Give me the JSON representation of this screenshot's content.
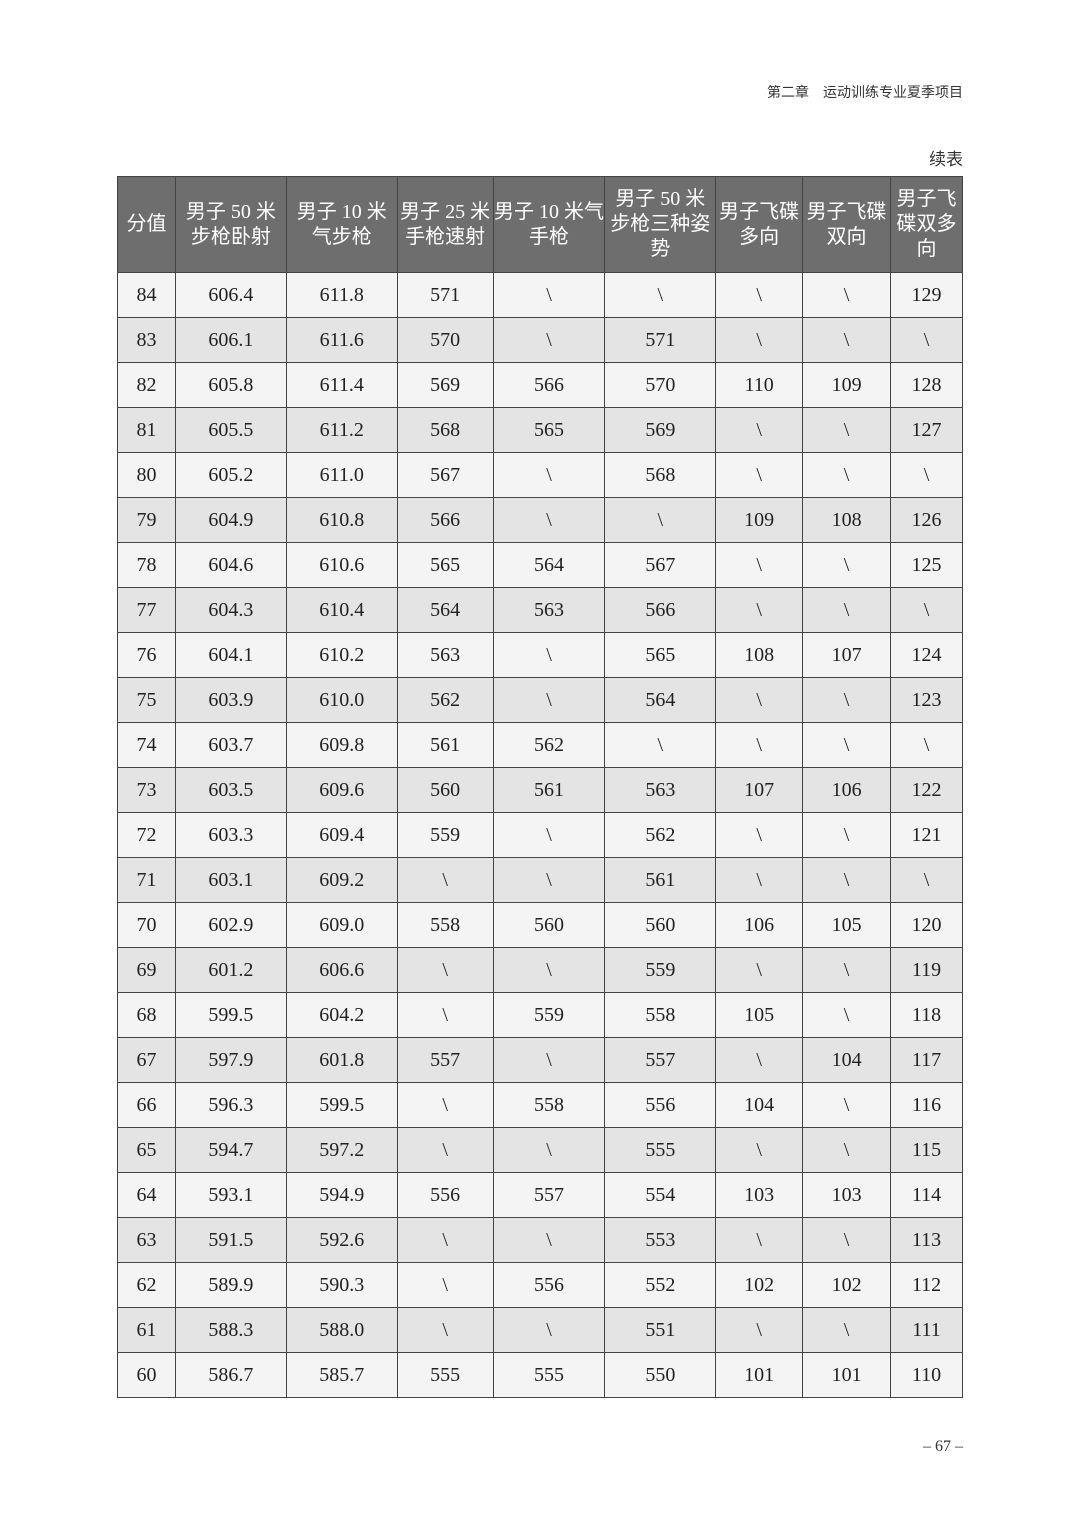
{
  "running_head": "第二章　运动训练专业夏季项目",
  "continued_label": "续表",
  "table": {
    "headers": [
      "分值",
      "男子 50 米步枪卧射",
      "男子 10 米气步枪",
      "男子 25 米手枪速射",
      "男子 10 米气手枪",
      "男子 50 米步枪三种姿势",
      "男子飞碟多向",
      "男子飞碟双向",
      "男子飞碟双多向"
    ],
    "rows": [
      [
        "84",
        "606.4",
        "611.8",
        "571",
        "\\",
        "\\",
        "\\",
        "\\",
        "129"
      ],
      [
        "83",
        "606.1",
        "611.6",
        "570",
        "\\",
        "571",
        "\\",
        "\\",
        "\\"
      ],
      [
        "82",
        "605.8",
        "611.4",
        "569",
        "566",
        "570",
        "110",
        "109",
        "128"
      ],
      [
        "81",
        "605.5",
        "611.2",
        "568",
        "565",
        "569",
        "\\",
        "\\",
        "127"
      ],
      [
        "80",
        "605.2",
        "611.0",
        "567",
        "\\",
        "568",
        "\\",
        "\\",
        "\\"
      ],
      [
        "79",
        "604.9",
        "610.8",
        "566",
        "\\",
        "\\",
        "109",
        "108",
        "126"
      ],
      [
        "78",
        "604.6",
        "610.6",
        "565",
        "564",
        "567",
        "\\",
        "\\",
        "125"
      ],
      [
        "77",
        "604.3",
        "610.4",
        "564",
        "563",
        "566",
        "\\",
        "\\",
        "\\"
      ],
      [
        "76",
        "604.1",
        "610.2",
        "563",
        "\\",
        "565",
        "108",
        "107",
        "124"
      ],
      [
        "75",
        "603.9",
        "610.0",
        "562",
        "\\",
        "564",
        "\\",
        "\\",
        "123"
      ],
      [
        "74",
        "603.7",
        "609.8",
        "561",
        "562",
        "\\",
        "\\",
        "\\",
        "\\"
      ],
      [
        "73",
        "603.5",
        "609.6",
        "560",
        "561",
        "563",
        "107",
        "106",
        "122"
      ],
      [
        "72",
        "603.3",
        "609.4",
        "559",
        "\\",
        "562",
        "\\",
        "\\",
        "121"
      ],
      [
        "71",
        "603.1",
        "609.2",
        "\\",
        "\\",
        "561",
        "\\",
        "\\",
        "\\"
      ],
      [
        "70",
        "602.9",
        "609.0",
        "558",
        "560",
        "560",
        "106",
        "105",
        "120"
      ],
      [
        "69",
        "601.2",
        "606.6",
        "\\",
        "\\",
        "559",
        "\\",
        "\\",
        "119"
      ],
      [
        "68",
        "599.5",
        "604.2",
        "\\",
        "559",
        "558",
        "105",
        "\\",
        "118"
      ],
      [
        "67",
        "597.9",
        "601.8",
        "557",
        "\\",
        "557",
        "\\",
        "104",
        "117"
      ],
      [
        "66",
        "596.3",
        "599.5",
        "\\",
        "558",
        "556",
        "104",
        "\\",
        "116"
      ],
      [
        "65",
        "594.7",
        "597.2",
        "\\",
        "\\",
        "555",
        "\\",
        "\\",
        "115"
      ],
      [
        "64",
        "593.1",
        "594.9",
        "556",
        "557",
        "554",
        "103",
        "103",
        "114"
      ],
      [
        "63",
        "591.5",
        "592.6",
        "\\",
        "\\",
        "553",
        "\\",
        "\\",
        "113"
      ],
      [
        "62",
        "589.9",
        "590.3",
        "\\",
        "556",
        "552",
        "102",
        "102",
        "112"
      ],
      [
        "61",
        "588.3",
        "588.0",
        "\\",
        "\\",
        "551",
        "\\",
        "\\",
        "111"
      ],
      [
        "60",
        "586.7",
        "585.7",
        "555",
        "555",
        "550",
        "101",
        "101",
        "110"
      ]
    ]
  },
  "page_number": "– 67 –"
}
